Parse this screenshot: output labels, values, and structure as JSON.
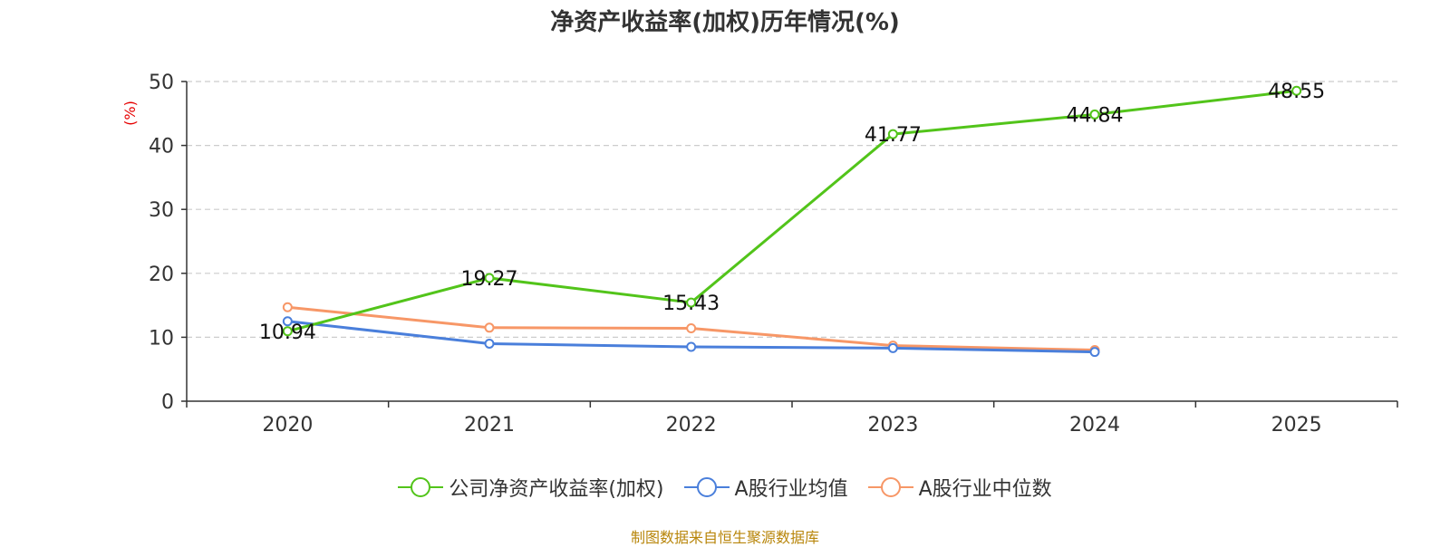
{
  "title": "净资产收益率(加权)历年情况(%)",
  "source": "制图数据来自恒生聚源数据库",
  "chart_data": {
    "type": "line",
    "title": "净资产收益率(加权)历年情况(%)",
    "ylabel": "(%)",
    "ylim": [
      0,
      50
    ],
    "yticks": [
      0,
      10,
      20,
      30,
      40,
      50
    ],
    "categories": [
      "2020",
      "2021",
      "2022",
      "2023",
      "2024",
      "2025"
    ],
    "series": [
      {
        "name": "公司净资产收益率(加权)",
        "color": "#52c41a",
        "values": [
          10.94,
          19.27,
          15.43,
          41.77,
          44.84,
          48.55
        ],
        "labels": true
      },
      {
        "name": "A股行业均值",
        "color": "#4a7fdb",
        "values": [
          12.5,
          9.0,
          8.5,
          8.3,
          7.7,
          null
        ],
        "labels": false
      },
      {
        "name": "A股行业中位数",
        "color": "#f79767",
        "values": [
          14.7,
          11.5,
          11.4,
          8.7,
          8.0,
          null
        ],
        "labels": false
      }
    ],
    "grid": true,
    "legend": "bottom-center"
  }
}
